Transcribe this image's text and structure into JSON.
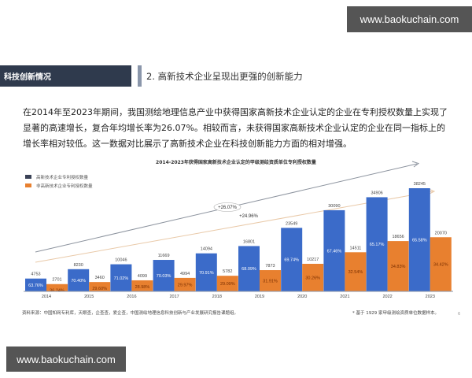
{
  "watermark": {
    "top": "www.baokuchain.com",
    "bottom": "www.baokuchain.com"
  },
  "section_tag": "科技创新情况",
  "heading": "2.  高新技术企业呈现出更强的创新能力",
  "paragraph": "在2014年至2023年期间，我国测绘地理信息产业中获得国家高新技术企业认定的企业在专利授权数量上实现了显著的高速增长，复合年均增长率为26.07%。相较而言，未获得国家高新技术企业认定的企业在同一指标上的增长率相对较低。这一数据对比展示了高新技术企业在科技创新能力方面的相对增强。",
  "colors": {
    "high_tech": "#3b6bc9",
    "non_high_tech": "#e8802f",
    "legend_high_tech": "#3a4256",
    "header_bg": "#2f3a4d",
    "accent": "#8a96aa",
    "trend_gray": "#8c939e",
    "trend_orange": "#e9c9a8"
  },
  "chart_data": {
    "type": "bar",
    "title": "2014-2023年获得国家高新技术企业认定的甲级测绘资质单位专利授权数量",
    "categories": [
      "2014",
      "2015",
      "2016",
      "2017",
      "2018",
      "2019",
      "2020",
      "2021",
      "2022",
      "2023"
    ],
    "series": [
      {
        "name": "高新技术企业专利授权数量",
        "values": [
          4753,
          8230,
          10046,
          11669,
          14094,
          16801,
          23549,
          30090,
          34906,
          38245
        ],
        "share_labels": [
          "63.76%",
          "70.40%",
          "71.02%",
          "70.03%",
          "70.91%",
          "68.09%",
          "69.74%",
          "67.46%",
          "65.17%",
          "65.58%"
        ]
      },
      {
        "name": "非高新技术企业专利授权数量",
        "values": [
          2701,
          3460,
          4099,
          4994,
          5782,
          7873,
          10217,
          14511,
          18656,
          20070
        ],
        "share_labels": [
          "36.24%",
          "29.60%",
          "28.98%",
          "29.97%",
          "29.09%",
          "31.91%",
          "30.26%",
          "32.54%",
          "34.83%",
          "34.42%"
        ]
      }
    ],
    "annotations": [
      {
        "text": "+26.07%",
        "series": "高新技术企业专利授权数量"
      },
      {
        "text": "+24.96%",
        "series": "非高新技术企业专利授权数量"
      }
    ],
    "xlabel": "",
    "ylabel": "",
    "ylim": [
      0,
      40000
    ],
    "grid": false,
    "legend_position": "top-left"
  },
  "footer": {
    "source": "资料来源：中国知网专利库，天眼查，企查查，爱企查，中国测绘地理信息科技创新与产业发展研究报告课题组。",
    "note": "* 基于 1929 家甲级测绘资质单位数据样本。",
    "page": "6"
  }
}
